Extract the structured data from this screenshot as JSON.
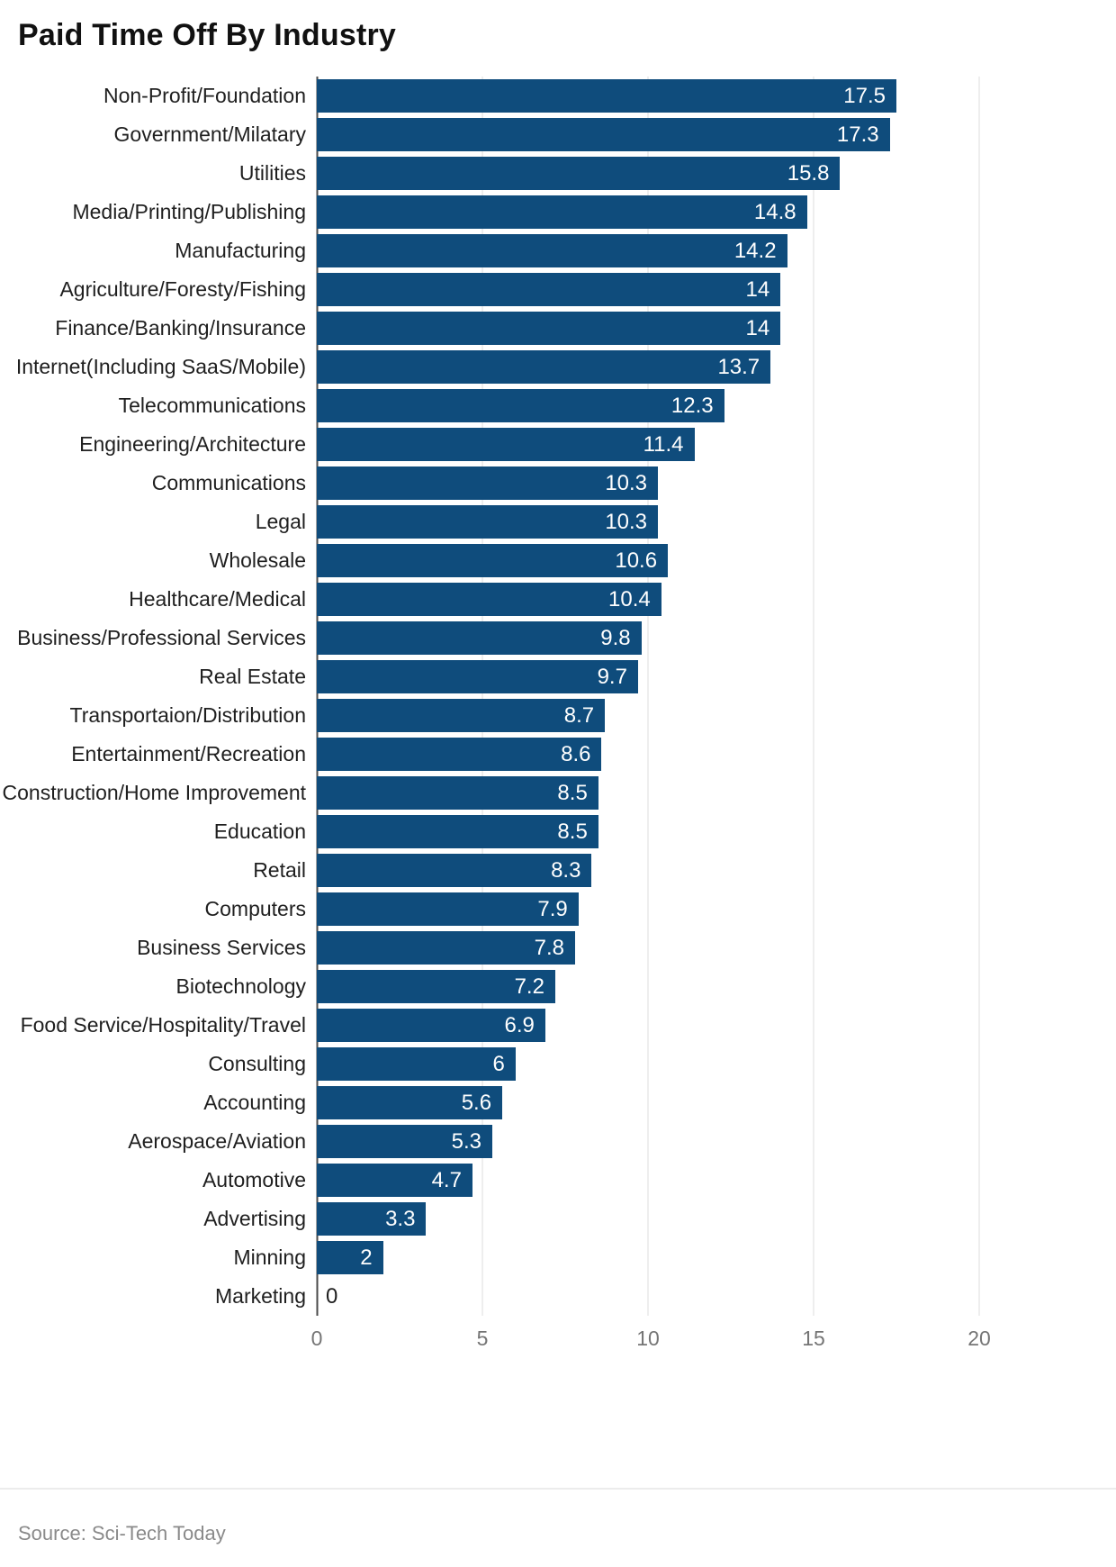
{
  "title": "Paid Time Off By Industry",
  "source": "Source: Sci-Tech Today",
  "colors": {
    "bar": "#0f4c7c",
    "grid": "#dedede",
    "axis": "#4a4a4a",
    "category_label": "#1f1f1f",
    "value_label_inside": "#ffffff",
    "tick_label": "#757575",
    "background": "#ffffff"
  },
  "chart_data": {
    "type": "bar",
    "orientation": "horizontal",
    "title": "Paid Time Off By Industry",
    "xlabel": "",
    "ylabel": "",
    "xlim": [
      0,
      20
    ],
    "xticks": [
      0,
      5,
      10,
      15,
      20
    ],
    "grid": true,
    "legend": false,
    "value_labels": "inside-end",
    "categories": [
      "Non-Profit/Foundation",
      "Government/Milatary",
      "Utilities",
      "Media/Printing/Publishing",
      "Manufacturing",
      "Agriculture/Foresty/Fishing",
      "Finance/Banking/Insurance",
      "Internet(Including SaaS/Mobile)",
      "Telecommunications",
      "Engineering/Architecture",
      "Communications",
      "Legal",
      "Wholesale",
      "Healthcare/Medical",
      "Business/Professional Services",
      "Real Estate",
      "Transportaion/Distribution",
      "Entertainment/Recreation",
      "Construction/Home Improvement",
      "Education",
      "Retail",
      "Computers",
      "Business Services",
      "Biotechnology",
      "Food Service/Hospitality/Travel",
      "Consulting",
      "Accounting",
      "Aerospace/Aviation",
      "Automotive",
      "Advertising",
      "Minning",
      "Marketing"
    ],
    "values": [
      17.5,
      17.3,
      15.8,
      14.8,
      14.2,
      14,
      14,
      13.7,
      12.3,
      11.4,
      10.3,
      10.3,
      10.6,
      10.4,
      9.8,
      9.7,
      8.7,
      8.6,
      8.5,
      8.5,
      8.3,
      7.9,
      7.8,
      7.2,
      6.9,
      6,
      5.6,
      5.3,
      4.7,
      3.3,
      2,
      0
    ]
  }
}
